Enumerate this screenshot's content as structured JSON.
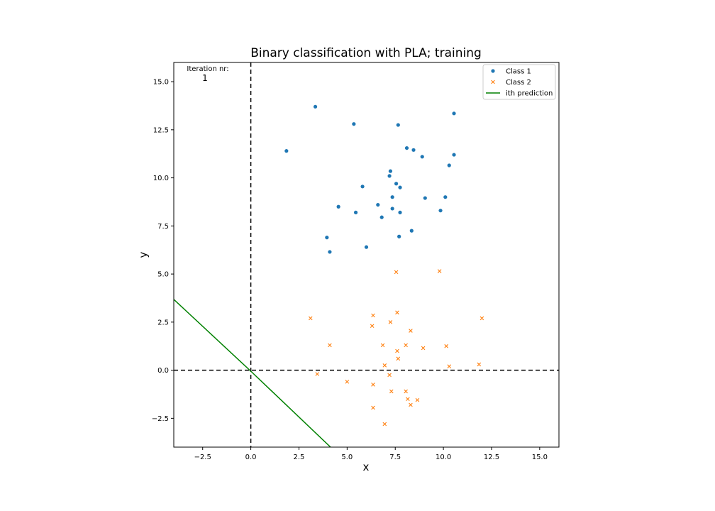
{
  "chart_data": {
    "type": "scatter",
    "title": "Binary classification with PLA; training",
    "xlabel": "x",
    "ylabel": "y",
    "xlim": [
      -4,
      16
    ],
    "ylim": [
      -4,
      16
    ],
    "xticks": [
      -2.5,
      0.0,
      2.5,
      5.0,
      7.5,
      10.0,
      12.5,
      15.0
    ],
    "yticks": [
      -2.5,
      0.0,
      2.5,
      5.0,
      7.5,
      10.0,
      12.5,
      15.0
    ],
    "xtick_labels": [
      "−2.5",
      "0.0",
      "2.5",
      "5.0",
      "7.5",
      "10.0",
      "12.5",
      "15.0"
    ],
    "ytick_labels": [
      "−2.5",
      "0.0",
      "2.5",
      "5.0",
      "7.5",
      "10.0",
      "12.5",
      "15.0"
    ],
    "grid": false,
    "legend_position": "top-right",
    "annotation": {
      "label": "Iteration nr:",
      "value": "1"
    },
    "reference_lines": {
      "vertical_x": 0,
      "horizontal_y": 0,
      "style": "dashed",
      "color": "#000000"
    },
    "series": [
      {
        "name": "Class 1",
        "marker": "circle",
        "color": "#1f77b4",
        "points": [
          [
            3.35,
            13.7
          ],
          [
            10.55,
            13.35
          ],
          [
            5.35,
            12.8
          ],
          [
            7.65,
            12.75
          ],
          [
            1.85,
            11.4
          ],
          [
            8.1,
            11.55
          ],
          [
            8.45,
            11.45
          ],
          [
            8.9,
            11.1
          ],
          [
            10.55,
            11.2
          ],
          [
            10.3,
            10.65
          ],
          [
            7.25,
            10.35
          ],
          [
            7.2,
            10.1
          ],
          [
            5.8,
            9.55
          ],
          [
            7.55,
            9.7
          ],
          [
            7.75,
            9.5
          ],
          [
            7.35,
            9.0
          ],
          [
            9.05,
            8.95
          ],
          [
            10.1,
            9.0
          ],
          [
            4.55,
            8.5
          ],
          [
            6.6,
            8.6
          ],
          [
            7.35,
            8.4
          ],
          [
            9.85,
            8.3
          ],
          [
            5.45,
            8.2
          ],
          [
            7.75,
            8.2
          ],
          [
            6.8,
            7.95
          ],
          [
            8.35,
            7.25
          ],
          [
            3.95,
            6.9
          ],
          [
            7.7,
            6.95
          ],
          [
            4.1,
            6.15
          ],
          [
            6.0,
            6.4
          ]
        ]
      },
      {
        "name": "Class 2",
        "marker": "x",
        "color": "#ff7f0e",
        "points": [
          [
            7.55,
            5.1
          ],
          [
            9.8,
            5.15
          ],
          [
            3.1,
            2.7
          ],
          [
            12.0,
            2.7
          ],
          [
            7.6,
            3.0
          ],
          [
            6.35,
            2.85
          ],
          [
            7.25,
            2.5
          ],
          [
            6.3,
            2.3
          ],
          [
            8.3,
            2.05
          ],
          [
            4.1,
            1.3
          ],
          [
            6.85,
            1.3
          ],
          [
            8.05,
            1.3
          ],
          [
            10.15,
            1.25
          ],
          [
            8.95,
            1.15
          ],
          [
            7.6,
            1.0
          ],
          [
            7.65,
            0.6
          ],
          [
            6.95,
            0.25
          ],
          [
            10.3,
            0.2
          ],
          [
            11.85,
            0.3
          ],
          [
            3.45,
            -0.2
          ],
          [
            7.2,
            -0.25
          ],
          [
            5.0,
            -0.6
          ],
          [
            6.35,
            -0.75
          ],
          [
            7.3,
            -1.1
          ],
          [
            8.05,
            -1.1
          ],
          [
            8.15,
            -1.5
          ],
          [
            8.65,
            -1.55
          ],
          [
            8.3,
            -1.8
          ],
          [
            6.35,
            -1.95
          ],
          [
            6.95,
            -2.8
          ]
        ]
      },
      {
        "name": "ith prediction",
        "type": "line",
        "color": "#008000",
        "points": [
          [
            -4.0,
            3.68
          ],
          [
            0.0,
            -0.05
          ],
          [
            4.14,
            -4.0
          ]
        ]
      }
    ]
  }
}
